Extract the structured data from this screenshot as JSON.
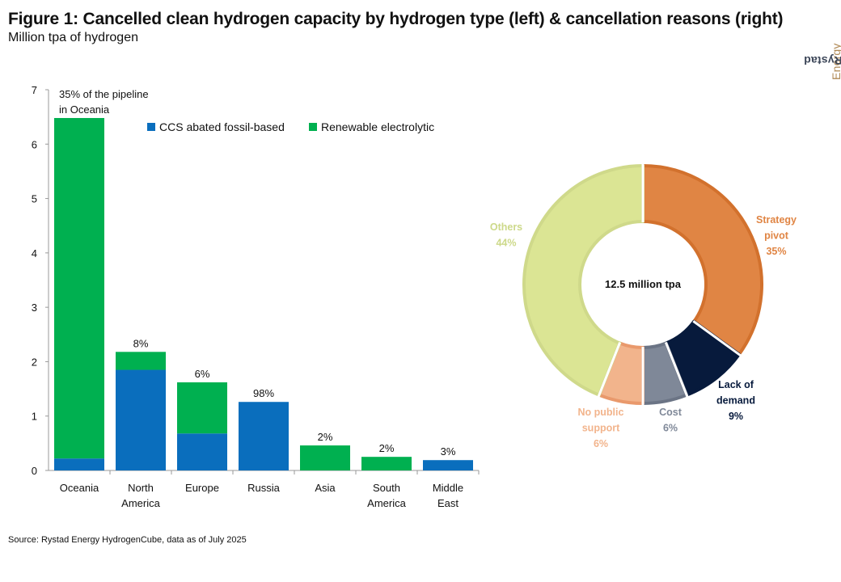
{
  "header": {
    "title": "Figure 1: Cancelled clean hydrogen capacity by hydrogen type (left) & cancellation reasons (right)",
    "subtitle": "Million tpa of hydrogen"
  },
  "logo": {
    "part1": "Rystad",
    "part2": "Energy"
  },
  "source": "Source: Rystad Energy HydrogenCube, data as of July 2025",
  "colors": {
    "ccs": "#0a6ebd",
    "renewable": "#00b050",
    "strategy": "#e08544",
    "demand": "#071a3c",
    "cost": "#7f8898",
    "public_support": "#f2b48c",
    "others": "#dbe594"
  },
  "chart_data": [
    {
      "type": "bar",
      "stacked": true,
      "categories": [
        [
          "Oceania"
        ],
        [
          "North",
          "America"
        ],
        [
          "Europe"
        ],
        [
          "Russia"
        ],
        [
          "Asia"
        ],
        [
          "South",
          "America"
        ],
        [
          "Middle",
          "East"
        ]
      ],
      "series": [
        {
          "name": "CCS abated fossil-based",
          "values": [
            0.22,
            1.85,
            0.68,
            1.26,
            0.0,
            0.0,
            0.19
          ]
        },
        {
          "name": "Renewable electrolytic",
          "values": [
            6.26,
            0.33,
            0.94,
            0.0,
            0.46,
            0.25,
            0.0
          ]
        }
      ],
      "annotations": [
        [
          "35% of the pipeline",
          "in Oceania"
        ],
        [
          "8%"
        ],
        [
          "6%"
        ],
        [
          "98%"
        ],
        [
          "2%"
        ],
        [
          "2%"
        ],
        [
          "3%"
        ]
      ],
      "ylim": [
        0,
        7
      ],
      "yticks": [
        0,
        1,
        2,
        3,
        4,
        5,
        6,
        7
      ],
      "legend_position": "top-right"
    },
    {
      "type": "pie",
      "donut": true,
      "center_label": "12.5 million tpa",
      "slices": [
        {
          "name": [
            "Strategy",
            "pivot"
          ],
          "value": 35,
          "label": "35%"
        },
        {
          "name": [
            "Lack of",
            "demand"
          ],
          "value": 9,
          "label": "9%"
        },
        {
          "name": [
            "Cost"
          ],
          "value": 6,
          "label": "6%"
        },
        {
          "name": [
            "No public",
            "support"
          ],
          "value": 6,
          "label": "6%"
        },
        {
          "name": [
            "Others"
          ],
          "value": 44,
          "label": "44%"
        }
      ]
    }
  ]
}
